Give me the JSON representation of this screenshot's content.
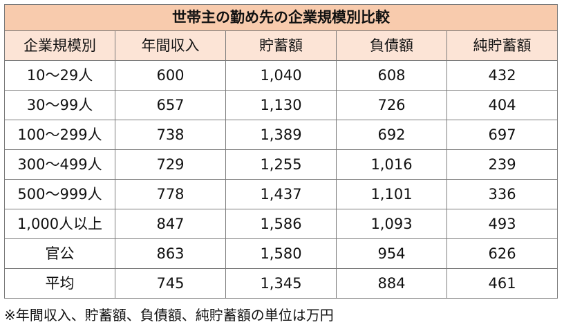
{
  "table": {
    "title": "世帯主の勤め先の企業規模別比較",
    "headers": [
      "企業規模別",
      "年間収入",
      "貯蓄額",
      "負債額",
      "純貯蓄額"
    ],
    "rows": [
      [
        "10〜29人",
        "600",
        "1,040",
        "608",
        "432"
      ],
      [
        "30〜99人",
        "657",
        "1,130",
        "726",
        "404"
      ],
      [
        "100〜299人",
        "738",
        "1,389",
        "692",
        "697"
      ],
      [
        "300〜499人",
        "729",
        "1,255",
        "1,016",
        "239"
      ],
      [
        "500〜999人",
        "778",
        "1,437",
        "1,101",
        "336"
      ],
      [
        "1,000人以上",
        "847",
        "1,586",
        "1,093",
        "493"
      ],
      [
        "官公",
        "863",
        "1,580",
        "954",
        "626"
      ],
      [
        "平均",
        "745",
        "1,345",
        "884",
        "461"
      ]
    ],
    "note": "※年間収入、貯蓄額、負債額、純貯蓄額の単位は万円"
  },
  "colors": {
    "title_bg": "#f8cbad",
    "header_bg": "#fce4d6",
    "border": "#7a7a7a"
  }
}
